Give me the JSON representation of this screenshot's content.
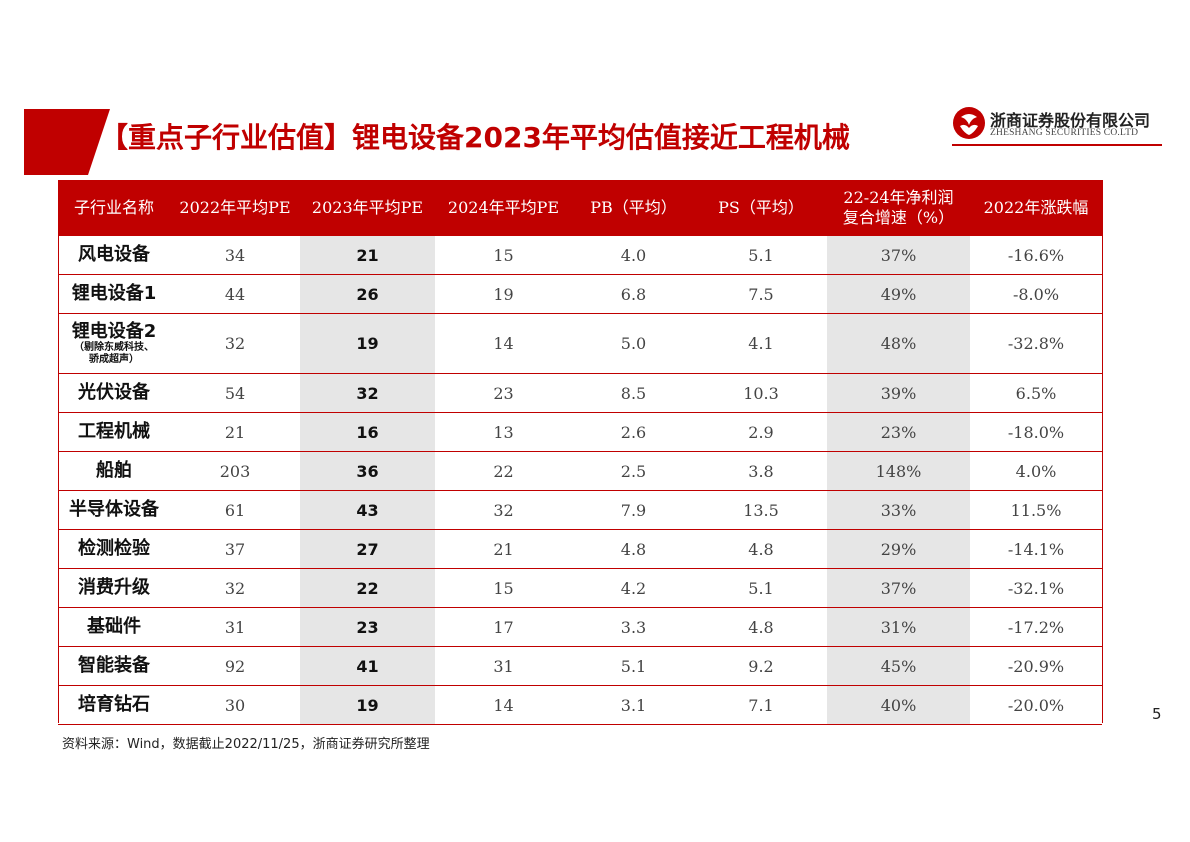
{
  "title": "【重点子行业估值】锂电设备2023年平均估值接近工程机械",
  "logo": {
    "cn": "浙商证券股份有限公司",
    "en": "ZHESHANG SECURITIES CO.LTD"
  },
  "colors": {
    "accent": "#c00000",
    "highlight": "#e6e6e6"
  },
  "table": {
    "headers": [
      "子行业名称",
      "2022年平均PE",
      "2023年平均PE",
      "2024年平均PE",
      "PB（平均）",
      "PS（平均）",
      "22-24年净利润",
      "复合增速（%）",
      "2022年涨跌幅"
    ],
    "rows": [
      {
        "name": "风电设备",
        "pe22": "34",
        "pe23": "21",
        "pe24": "15",
        "pb": "4.0",
        "ps": "5.1",
        "cagr": "37%",
        "chg": "-16.6%"
      },
      {
        "name": "锂电设备1",
        "pe22": "44",
        "pe23": "26",
        "pe24": "19",
        "pb": "6.8",
        "ps": "7.5",
        "cagr": "49%",
        "chg": "-8.0%"
      },
      {
        "name": "锂电设备2",
        "note1": "（剔除东威科技、",
        "note2": "骄成超声）",
        "pe22": "32",
        "pe23": "19",
        "pe24": "14",
        "pb": "5.0",
        "ps": "4.1",
        "cagr": "48%",
        "chg": "-32.8%"
      },
      {
        "name": "光伏设备",
        "pe22": "54",
        "pe23": "32",
        "pe24": "23",
        "pb": "8.5",
        "ps": "10.3",
        "cagr": "39%",
        "chg": "6.5%"
      },
      {
        "name": "工程机械",
        "pe22": "21",
        "pe23": "16",
        "pe24": "13",
        "pb": "2.6",
        "ps": "2.9",
        "cagr": "23%",
        "chg": "-18.0%"
      },
      {
        "name": "船舶",
        "pe22": "203",
        "pe23": "36",
        "pe24": "22",
        "pb": "2.5",
        "ps": "3.8",
        "cagr": "148%",
        "chg": "4.0%"
      },
      {
        "name": "半导体设备",
        "pe22": "61",
        "pe23": "43",
        "pe24": "32",
        "pb": "7.9",
        "ps": "13.5",
        "cagr": "33%",
        "chg": "11.5%"
      },
      {
        "name": "检测检验",
        "pe22": "37",
        "pe23": "27",
        "pe24": "21",
        "pb": "4.8",
        "ps": "4.8",
        "cagr": "29%",
        "chg": "-14.1%"
      },
      {
        "name": "消费升级",
        "pe22": "32",
        "pe23": "22",
        "pe24": "15",
        "pb": "4.2",
        "ps": "5.1",
        "cagr": "37%",
        "chg": "-32.1%"
      },
      {
        "name": "基础件",
        "pe22": "31",
        "pe23": "23",
        "pe24": "17",
        "pb": "3.3",
        "ps": "4.8",
        "cagr": "31%",
        "chg": "-17.2%"
      },
      {
        "name": "智能装备",
        "pe22": "92",
        "pe23": "41",
        "pe24": "31",
        "pb": "5.1",
        "ps": "9.2",
        "cagr": "45%",
        "chg": "-20.9%"
      },
      {
        "name": "培育钻石",
        "pe22": "30",
        "pe23": "19",
        "pe24": "14",
        "pb": "3.1",
        "ps": "7.1",
        "cagr": "40%",
        "chg": "-20.0%"
      }
    ]
  },
  "source": "资料来源：Wind，数据截止2022/11/25，浙商证券研究所整理",
  "page_number": "5"
}
